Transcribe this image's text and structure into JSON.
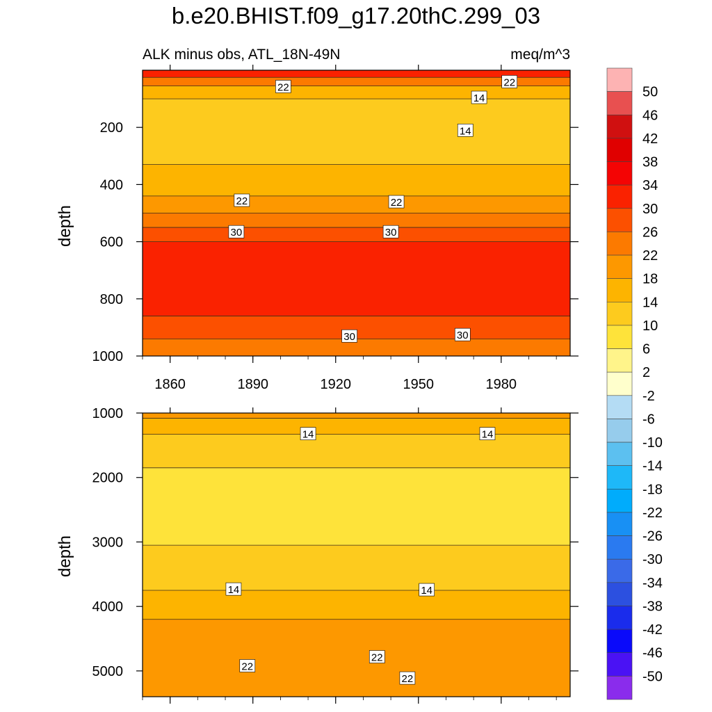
{
  "page": {
    "title": "b.e20.BHIST.f09_g17.20thC.299_03",
    "subtitle_left": "ALK minus obs, ATL_18N-49N",
    "subtitle_right": "meq/m^3"
  },
  "chart_data": [
    {
      "type": "heatmap",
      "panel": "upper",
      "title": "",
      "xlabel": "",
      "ylabel": "depth",
      "xlim": [
        1850,
        2005
      ],
      "ylim": [
        0,
        1000
      ],
      "y_inverted": true,
      "x_ticks": [
        1860,
        1890,
        1920,
        1950,
        1980
      ],
      "y_ticks": [
        200,
        400,
        600,
        800,
        1000
      ],
      "contour_bands": [
        {
          "from": 0,
          "to": 25,
          "value": 34
        },
        {
          "from": 25,
          "to": 55,
          "value": 26
        },
        {
          "from": 55,
          "to": 100,
          "value": 18
        },
        {
          "from": 100,
          "to": 330,
          "value": 14
        },
        {
          "from": 330,
          "to": 440,
          "value": 18
        },
        {
          "from": 440,
          "to": 500,
          "value": 22
        },
        {
          "from": 500,
          "to": 550,
          "value": 26
        },
        {
          "from": 550,
          "to": 600,
          "value": 30
        },
        {
          "from": 600,
          "to": 860,
          "value": 34
        },
        {
          "from": 860,
          "to": 940,
          "value": 30
        },
        {
          "from": 940,
          "to": 1000,
          "value": 26
        }
      ],
      "contour_labels": [
        {
          "text": "22",
          "x": 1901,
          "y": 57
        },
        {
          "text": "22",
          "x": 1983,
          "y": 40
        },
        {
          "text": "14",
          "x": 1972,
          "y": 95
        },
        {
          "text": "14",
          "x": 1967,
          "y": 210
        },
        {
          "text": "22",
          "x": 1886,
          "y": 455
        },
        {
          "text": "22",
          "x": 1942,
          "y": 460
        },
        {
          "text": "30",
          "x": 1884,
          "y": 565
        },
        {
          "text": "30",
          "x": 1940,
          "y": 565
        },
        {
          "text": "30",
          "x": 1925,
          "y": 930
        },
        {
          "text": "30",
          "x": 1966,
          "y": 925
        }
      ]
    },
    {
      "type": "heatmap",
      "panel": "lower",
      "title": "",
      "xlabel": "",
      "ylabel": "depth",
      "xlim": [
        1850,
        2005
      ],
      "ylim": [
        1000,
        5400
      ],
      "y_inverted": true,
      "x_ticks": [
        1860,
        1890,
        1920,
        1950,
        1980
      ],
      "y_ticks": [
        1000,
        2000,
        3000,
        4000,
        5000
      ],
      "contour_bands": [
        {
          "from": 1000,
          "to": 1080,
          "value": 22
        },
        {
          "from": 1080,
          "to": 1330,
          "value": 18
        },
        {
          "from": 1330,
          "to": 1850,
          "value": 14
        },
        {
          "from": 1850,
          "to": 3050,
          "value": 10
        },
        {
          "from": 3050,
          "to": 3750,
          "value": 14
        },
        {
          "from": 3750,
          "to": 4200,
          "value": 18
        },
        {
          "from": 4200,
          "to": 5400,
          "value": 22
        }
      ],
      "contour_labels": [
        {
          "text": "14",
          "x": 1910,
          "y": 1320
        },
        {
          "text": "14",
          "x": 1975,
          "y": 1320
        },
        {
          "text": "14",
          "x": 1883,
          "y": 3730
        },
        {
          "text": "14",
          "x": 1953,
          "y": 3740
        },
        {
          "text": "22",
          "x": 1888,
          "y": 4920
        },
        {
          "text": "22",
          "x": 1935,
          "y": 4780
        },
        {
          "text": "22",
          "x": 1946,
          "y": 5110
        }
      ]
    }
  ],
  "colorbar": {
    "labels": [
      "50",
      "46",
      "42",
      "38",
      "34",
      "30",
      "26",
      "22",
      "18",
      "14",
      "10",
      "6",
      "2",
      "-2",
      "-6",
      "-10",
      "-14",
      "-18",
      "-22",
      "-26",
      "-30",
      "-34",
      "-38",
      "-42",
      "-46",
      "-50"
    ],
    "colors": [
      "#fdb3b3",
      "#e85050",
      "#d01010",
      "#e00000",
      "#f40404",
      "#fa2200",
      "#fc5000",
      "#fc7a00",
      "#fd9800",
      "#fdb400",
      "#fdcb1e",
      "#fee33a",
      "#fff48a",
      "#ffffcc",
      "#b4dcf4",
      "#96ccec",
      "#5cc0f0",
      "#1eb8f8",
      "#00acfc",
      "#1890f4",
      "#2a7af0",
      "#3a6ae8",
      "#2c50e0",
      "#1a2cec",
      "#0a0afa",
      "#4a12f4",
      "#8a2cec"
    ]
  }
}
